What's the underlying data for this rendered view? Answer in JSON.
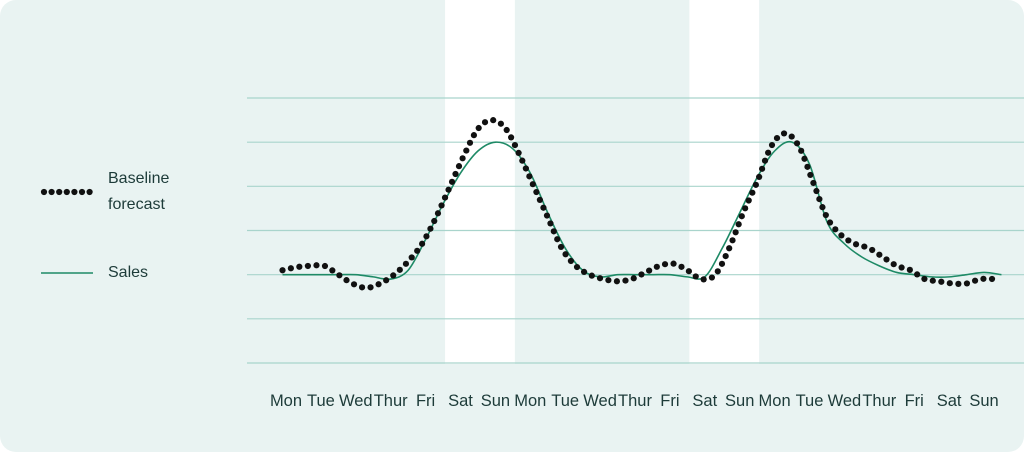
{
  "colors": {
    "background": "#e9f3f2",
    "weekend_band": "#ffffff",
    "grid": "#a9d4cc",
    "sales_line": "#1e8a66",
    "baseline_dots": "#111111",
    "text": "#1d3b39"
  },
  "legend": {
    "placement": "left",
    "baseline_label": "Baseline forecast",
    "sales_label": "Sales"
  },
  "chart_data": {
    "type": "line",
    "title": "",
    "xlabel": "",
    "ylabel": "",
    "grid": true,
    "y_axis_labels": false,
    "ylim": [
      0,
      6
    ],
    "categories": [
      "Mon",
      "Tue",
      "Wed",
      "Thur",
      "Fri",
      "Sat",
      "Sun",
      "Mon",
      "Tue",
      "Wed",
      "Thur",
      "Fri",
      "Sat",
      "Sun",
      "Mon",
      "Tue",
      "Wed",
      "Thur",
      "Fri",
      "Sat",
      "Sun"
    ],
    "shaded_categories": [
      5,
      6,
      12,
      13
    ],
    "series": [
      {
        "name": "Baseline forecast",
        "style": "dotted",
        "x": [
          -0.1,
          0.3,
          0.7,
          1.1,
          1.5,
          1.9,
          2.3,
          2.7,
          3.1,
          3.5,
          3.9,
          4.3,
          4.7,
          5.1,
          5.5,
          5.9,
          6.3,
          6.7,
          7.1,
          7.5,
          7.9,
          8.3,
          8.7,
          9.1,
          9.5,
          9.9,
          10.3,
          10.7,
          11.1,
          11.5,
          11.9,
          12.3,
          12.7,
          13.1,
          13.5,
          13.9,
          14.3,
          14.7,
          15.1,
          15.5,
          15.9,
          16.3,
          16.7,
          17.1,
          17.5,
          17.9,
          18.3,
          18.7,
          19.1,
          19.5,
          19.9,
          20.3
        ],
        "values": [
          2.1,
          2.17,
          2.2,
          2.2,
          2.0,
          1.8,
          1.7,
          1.8,
          2.0,
          2.3,
          2.7,
          3.3,
          4.0,
          4.7,
          5.3,
          5.5,
          5.3,
          4.7,
          4.0,
          3.3,
          2.6,
          2.2,
          2.0,
          1.9,
          1.85,
          1.9,
          2.05,
          2.2,
          2.25,
          2.1,
          1.9,
          2.0,
          2.6,
          3.4,
          4.1,
          4.9,
          5.2,
          4.9,
          4.1,
          3.3,
          2.9,
          2.7,
          2.6,
          2.4,
          2.2,
          2.1,
          1.9,
          1.85,
          1.8,
          1.8,
          1.9,
          1.9
        ],
        "color": "#111111"
      },
      {
        "name": "Sales",
        "style": "solid",
        "x": [
          -0.1,
          0.5,
          1.0,
          1.5,
          2.0,
          2.5,
          3.0,
          3.5,
          4.0,
          4.5,
          5.0,
          5.5,
          6.0,
          6.5,
          7.0,
          7.5,
          8.0,
          8.5,
          9.0,
          9.5,
          10.0,
          10.5,
          11.0,
          11.5,
          12.0,
          12.5,
          13.0,
          13.5,
          14.0,
          14.5,
          15.0,
          15.5,
          16.0,
          16.5,
          17.0,
          17.5,
          18.0,
          18.5,
          19.0,
          19.5,
          20.0,
          20.5
        ],
        "values": [
          2.0,
          2.0,
          2.0,
          2.0,
          2.0,
          1.95,
          1.9,
          2.1,
          2.8,
          3.6,
          4.3,
          4.8,
          5.0,
          4.85,
          4.3,
          3.4,
          2.6,
          2.1,
          1.95,
          2.0,
          2.0,
          2.0,
          2.0,
          1.95,
          1.95,
          2.6,
          3.4,
          4.2,
          4.8,
          5.0,
          4.5,
          3.2,
          2.7,
          2.4,
          2.2,
          2.05,
          2.0,
          1.95,
          1.95,
          2.0,
          2.05,
          2.0
        ],
        "color": "#1e8a66"
      }
    ]
  }
}
